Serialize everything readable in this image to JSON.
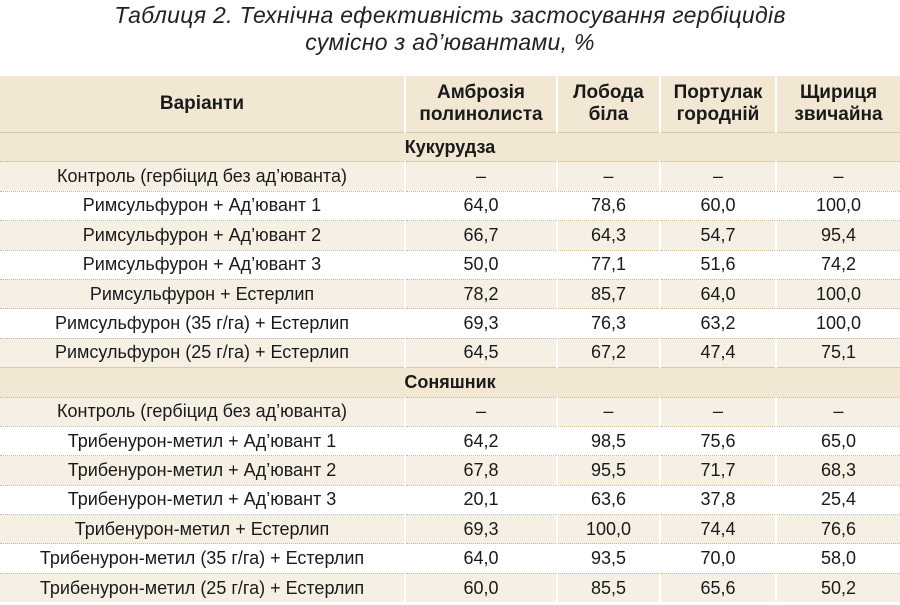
{
  "caption": {
    "line1": "Таблиця 2. Технічна ефективність застосування гербіцидів",
    "line2": "сумісно з ад’ювантами, %"
  },
  "headers": {
    "variant": "Варіанти",
    "ambrosia": "Амброзія полинолиста",
    "loboda": "Лобода біла",
    "portulak": "Портулак городній",
    "shchyrytsia": "Щириця звичайна"
  },
  "sections": [
    {
      "title": "Кукурудза",
      "rows": [
        [
          "Контроль  (гербіцид без ад’юванта)",
          "–",
          "–",
          "–",
          "–"
        ],
        [
          "Римсульфурон + Ад’ювант 1",
          "64,0",
          "78,6",
          "60,0",
          "100,0"
        ],
        [
          "Римсульфурон + Ад’ювант 2",
          "66,7",
          "64,3",
          "54,7",
          "95,4"
        ],
        [
          "Римсульфурон + Ад’ювант 3",
          "50,0",
          "77,1",
          "51,6",
          "74,2"
        ],
        [
          "Римсульфурон + Естерлип",
          "78,2",
          "85,7",
          "64,0",
          "100,0"
        ],
        [
          "Римсульфурон (35 г/га) + Естерлип",
          "69,3",
          "76,3",
          "63,2",
          "100,0"
        ],
        [
          "Римсульфурон (25 г/га) + Естерлип",
          "64,5",
          "67,2",
          "47,4",
          "75,1"
        ]
      ]
    },
    {
      "title": "Соняшник",
      "rows": [
        [
          "Контроль  (гербіцид без ад’юванта)",
          "–",
          "–",
          "–",
          "–"
        ],
        [
          "Трибенурон-метил + Ад’ювант 1",
          "64,2",
          "98,5",
          "75,6",
          "65,0"
        ],
        [
          "Трибенурон-метил + Ад’ювант 2",
          "67,8",
          "95,5",
          "71,7",
          "68,3"
        ],
        [
          "Трибенурон-метил + Ад’ювант 3",
          "20,1",
          "63,6",
          "37,8",
          "25,4"
        ],
        [
          "Трибенурон-метил + Естерлип",
          "69,3",
          "100,0",
          "74,4",
          "76,6"
        ],
        [
          "Трибенурон-метил (35 г/га) + Естерлип",
          "64,0",
          "93,5",
          "70,0",
          "58,0"
        ],
        [
          "Трибенурон-метил (25 г/га) + Естерлип",
          "60,0",
          "85,5",
          "65,6",
          "50,2"
        ]
      ]
    }
  ]
}
